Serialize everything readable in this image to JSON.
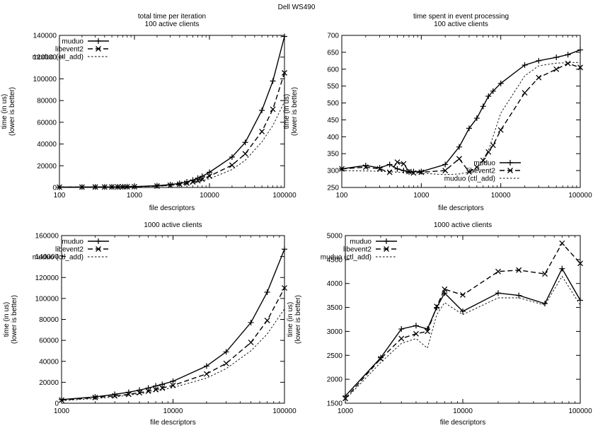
{
  "figure_title": "Dell WS490",
  "chart_data": [
    {
      "type": "line",
      "title": "total time per iteration",
      "subtitle": "100 active clients",
      "xlabel": "file descriptors",
      "ylabel": [
        "time (in us)",
        "(lower is better)"
      ],
      "x_scale": "log",
      "xlim": [
        100,
        100000
      ],
      "ylim": [
        0,
        140000
      ],
      "xticks": [
        100,
        1000,
        10000,
        100000
      ],
      "yticks": [
        0,
        20000,
        40000,
        60000,
        80000,
        100000,
        120000,
        140000
      ],
      "grid": false,
      "legend": "top-left",
      "series": [
        {
          "name": "muduo",
          "marker": "plus",
          "dash": "solid",
          "x": [
            100,
            200,
            300,
            400,
            500,
            600,
            700,
            800,
            1000,
            2000,
            3000,
            4000,
            5000,
            6000,
            7000,
            8000,
            10000,
            20000,
            30000,
            50000,
            70000,
            100000
          ],
          "y": [
            300,
            400,
            450,
            500,
            550,
            600,
            650,
            700,
            800,
            1600,
            2600,
            3800,
            5200,
            6800,
            8600,
            10300,
            14000,
            28000,
            41500,
            71000,
            98000,
            139000
          ]
        },
        {
          "name": "libevent2",
          "marker": "cross",
          "dash": "dashed",
          "x": [
            100,
            200,
            300,
            400,
            500,
            600,
            700,
            800,
            1000,
            2000,
            3000,
            4000,
            5000,
            6000,
            7000,
            8000,
            10000,
            20000,
            30000,
            50000,
            70000,
            100000
          ],
          "y": [
            300,
            350,
            400,
            450,
            500,
            500,
            550,
            600,
            700,
            1300,
            2100,
            3000,
            4000,
            5100,
            6300,
            7600,
            10500,
            20500,
            31000,
            51500,
            72000,
            105500
          ]
        },
        {
          "name": "muduo (ctl_add)",
          "marker": "none",
          "dash": "dotted",
          "x": [
            100,
            1000,
            2000,
            3000,
            5000,
            7000,
            10000,
            20000,
            30000,
            50000,
            70000,
            100000
          ],
          "y": [
            200,
            600,
            1100,
            1700,
            3200,
            5100,
            8000,
            16500,
            25000,
            42000,
            57000,
            79000
          ]
        }
      ]
    },
    {
      "type": "line",
      "title": "time spent in event processing",
      "subtitle": "100 active clients",
      "xlabel": "file descriptors",
      "ylabel": [
        "time (in us)",
        "(lower is better)"
      ],
      "x_scale": "log",
      "xlim": [
        100,
        100000
      ],
      "ylim": [
        250,
        700
      ],
      "xticks": [
        100,
        1000,
        10000,
        100000
      ],
      "yticks": [
        250,
        300,
        350,
        400,
        450,
        500,
        550,
        600,
        650,
        700
      ],
      "grid": false,
      "legend": "bottom-right",
      "series": [
        {
          "name": "muduo",
          "marker": "plus",
          "dash": "solid",
          "x": [
            100,
            200,
            300,
            400,
            500,
            600,
            700,
            800,
            1000,
            2000,
            3000,
            4000,
            5000,
            6000,
            7000,
            8000,
            10000,
            20000,
            30000,
            50000,
            70000,
            100000
          ],
          "y": [
            305,
            315,
            308,
            318,
            305,
            300,
            296,
            297,
            297,
            318,
            370,
            425,
            455,
            490,
            520,
            535,
            558,
            612,
            625,
            635,
            643,
            657
          ]
        },
        {
          "name": "libevent2",
          "marker": "cross",
          "dash": "dashed",
          "x": [
            100,
            200,
            300,
            400,
            500,
            600,
            700,
            800,
            1000,
            2000,
            3000,
            4000,
            5000,
            6000,
            7000,
            8000,
            10000,
            20000,
            30000,
            50000,
            70000,
            100000
          ],
          "y": [
            305,
            310,
            305,
            295,
            325,
            320,
            297,
            293,
            295,
            300,
            335,
            296,
            310,
            330,
            355,
            375,
            420,
            530,
            575,
            600,
            617,
            605
          ]
        },
        {
          "name": "muduo (ctl_add)",
          "marker": "none",
          "dash": "dotted",
          "x": [
            100,
            300,
            1000,
            2000,
            3000,
            5000,
            7000,
            10000,
            20000,
            30000,
            50000,
            100000
          ],
          "y": [
            300,
            298,
            292,
            288,
            290,
            300,
            360,
            470,
            580,
            610,
            618,
            620
          ]
        }
      ]
    },
    {
      "type": "line",
      "title": "1000 active clients",
      "xlabel": "file descriptors",
      "ylabel": [
        "time (in us)",
        "(lower is better)"
      ],
      "x_scale": "log",
      "xlim": [
        1000,
        100000
      ],
      "ylim": [
        0,
        160000
      ],
      "xticks": [
        1000,
        10000,
        100000
      ],
      "yticks": [
        0,
        20000,
        40000,
        60000,
        80000,
        100000,
        120000,
        140000,
        160000
      ],
      "grid": false,
      "legend": "top-left",
      "series": [
        {
          "name": "muduo",
          "marker": "plus",
          "dash": "solid",
          "x": [
            1000,
            2000,
            3000,
            4000,
            5000,
            6000,
            7000,
            8000,
            10000,
            20000,
            30000,
            50000,
            70000,
            100000
          ],
          "y": [
            3500,
            6000,
            8500,
            10500,
            12500,
            14500,
            16500,
            18000,
            21000,
            35500,
            49000,
            77000,
            106000,
            147000
          ]
        },
        {
          "name": "libevent2",
          "marker": "cross",
          "dash": "dashed",
          "x": [
            1000,
            2000,
            3000,
            4000,
            5000,
            6000,
            7000,
            8000,
            10000,
            20000,
            30000,
            50000,
            70000,
            100000
          ],
          "y": [
            3000,
            5500,
            7000,
            8500,
            10000,
            11500,
            13000,
            14500,
            17000,
            28000,
            38000,
            58000,
            79000,
            110000
          ]
        },
        {
          "name": "muduo (ctl_add)",
          "marker": "none",
          "dash": "dotted",
          "x": [
            1000,
            2000,
            3000,
            5000,
            7000,
            10000,
            20000,
            30000,
            50000,
            70000,
            100000
          ],
          "y": [
            2500,
            4500,
            6000,
            9000,
            11500,
            15000,
            24000,
            33000,
            50000,
            66000,
            90000
          ]
        }
      ]
    },
    {
      "type": "line",
      "title": "1000 active clients",
      "xlabel": "file descriptors",
      "ylabel": [
        "time (in us)",
        "(lower is better)"
      ],
      "x_scale": "log",
      "xlim": [
        1000,
        100000
      ],
      "ylim": [
        1500,
        5000
      ],
      "xticks": [
        1000,
        10000,
        100000
      ],
      "yticks": [
        1500,
        2000,
        2500,
        3000,
        3500,
        4000,
        4500,
        5000
      ],
      "grid": false,
      "legend": "top-left",
      "series": [
        {
          "name": "muduo",
          "marker": "plus",
          "dash": "solid",
          "x": [
            1000,
            2000,
            3000,
            4000,
            5000,
            6000,
            7000,
            10000,
            20000,
            30000,
            50000,
            70000,
            100000
          ],
          "y": [
            1650,
            2450,
            3050,
            3120,
            3050,
            3500,
            3800,
            3420,
            3800,
            3750,
            3580,
            4310,
            3650
          ]
        },
        {
          "name": "libevent2",
          "marker": "cross",
          "dash": "dashed",
          "x": [
            1000,
            2000,
            3000,
            4000,
            5000,
            6000,
            7000,
            10000,
            20000,
            30000,
            50000,
            70000,
            100000
          ],
          "y": [
            1600,
            2430,
            2850,
            2950,
            3000,
            3520,
            3880,
            3760,
            4250,
            4280,
            4200,
            4840,
            4420
          ]
        },
        {
          "name": "muduo (ctl_add)",
          "marker": "none",
          "dash": "dotted",
          "x": [
            1000,
            2000,
            3000,
            4000,
            5000,
            6000,
            7000,
            10000,
            20000,
            30000,
            50000,
            70000,
            100000
          ],
          "y": [
            1580,
            2350,
            2750,
            2850,
            2650,
            3350,
            3600,
            3350,
            3700,
            3700,
            3550,
            4150,
            3550
          ]
        }
      ]
    }
  ]
}
